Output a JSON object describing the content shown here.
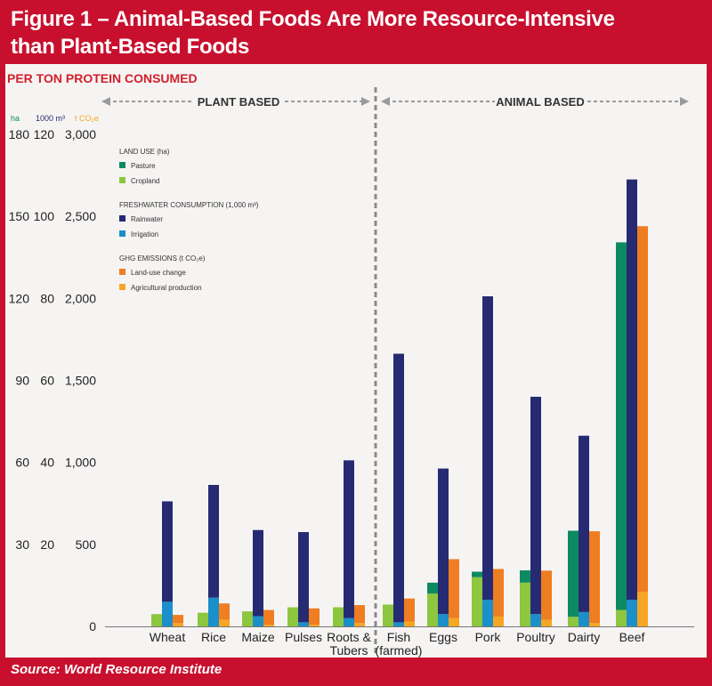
{
  "figure": {
    "title_line1": "Figure 1 – Animal-Based Foods Are More Resource-Intensive",
    "title_line2": "than Plant-Based Foods",
    "subtitle": "PER TON PROTEIN CONSUMED",
    "source": "Source: World Resource Institute"
  },
  "chart_data": {
    "type": "bar",
    "groups": {
      "left": "PLANT BASED",
      "right": "ANIMAL BASED"
    },
    "axis_units": {
      "land": "ha",
      "water": "1000 m³",
      "ghg": "t CO₂e"
    },
    "axes": {
      "land": {
        "ticks": [
          0,
          30,
          60,
          90,
          120,
          150,
          180
        ],
        "tick_labels": [
          "",
          "30",
          "60",
          "90",
          "120",
          "150",
          "180"
        ],
        "max": 180
      },
      "water": {
        "ticks": [
          0,
          20,
          40,
          60,
          80,
          100,
          120
        ],
        "tick_labels": [
          "",
          "20",
          "40",
          "60",
          "80",
          "100",
          "120"
        ],
        "max": 120
      },
      "ghg": {
        "ticks": [
          0,
          500,
          1000,
          1500,
          2000,
          2500,
          3000
        ],
        "tick_labels": [
          "0",
          "500",
          "1,000",
          "1,500",
          "2,000",
          "2,500",
          "3,000"
        ],
        "max": 3000
      }
    },
    "categories": [
      "Wheat",
      "Rice",
      "Maize",
      "Pulses",
      "Roots & Tubers",
      "Fish (farmed)",
      "Eggs",
      "Pork",
      "Poultry",
      "Dairty",
      "Beef"
    ],
    "category_labels": [
      [
        "Wheat"
      ],
      [
        "Rice"
      ],
      [
        "Maize"
      ],
      [
        "Pulses"
      ],
      [
        "Roots &",
        "Tubers"
      ],
      [
        "Fish",
        "(farmed)"
      ],
      [
        "Eggs"
      ],
      [
        "Pork"
      ],
      [
        "Poultry"
      ],
      [
        "Dairty"
      ],
      [
        "Beef"
      ]
    ],
    "legend": [
      {
        "heading": "LAND USE (ha)",
        "items": [
          {
            "key": "pasture",
            "label": "Pasture",
            "color": "#0e8a62"
          },
          {
            "key": "cropland",
            "label": "Cropland",
            "color": "#8dc63f"
          }
        ]
      },
      {
        "heading": "FRESHWATER CONSUMPTION (1,000 m³)",
        "items": [
          {
            "key": "rainwater",
            "label": "Rainwater",
            "color": "#262a73"
          },
          {
            "key": "irrigation",
            "label": "Irrigation",
            "color": "#1a8fc9"
          }
        ]
      },
      {
        "heading": "GHG EMISSIONS (t CO₂e)",
        "items": [
          {
            "key": "landuse_change",
            "label": "Land-use change",
            "color": "#ef7d22"
          },
          {
            "key": "agri_production",
            "label": "Agricultural production",
            "color": "#f6a623"
          }
        ]
      }
    ],
    "series": {
      "land_use_ha": {
        "cropland": [
          4.5,
          5,
          5.5,
          7,
          7,
          8,
          12,
          18,
          16,
          3.5,
          6
        ],
        "pasture": [
          0,
          0,
          0,
          0,
          0,
          0,
          4,
          2,
          4.5,
          31.5,
          134.5
        ]
      },
      "freshwater_1000m3": {
        "irrigation": [
          6,
          7,
          2.5,
          1,
          2,
          1,
          3,
          6.5,
          3,
          3.5,
          6.5
        ],
        "rainwater": [
          24.5,
          27.5,
          21,
          22,
          38.5,
          65.5,
          35.5,
          74,
          53,
          43,
          102.5
        ]
      },
      "ghg_t_co2e": {
        "agri_production": [
          20,
          40,
          10,
          10,
          20,
          30,
          50,
          60,
          40,
          20,
          210
        ],
        "landuse_change": [
          50,
          100,
          90,
          100,
          110,
          140,
          360,
          290,
          300,
          560,
          2230
        ]
      }
    },
    "grid": false
  }
}
